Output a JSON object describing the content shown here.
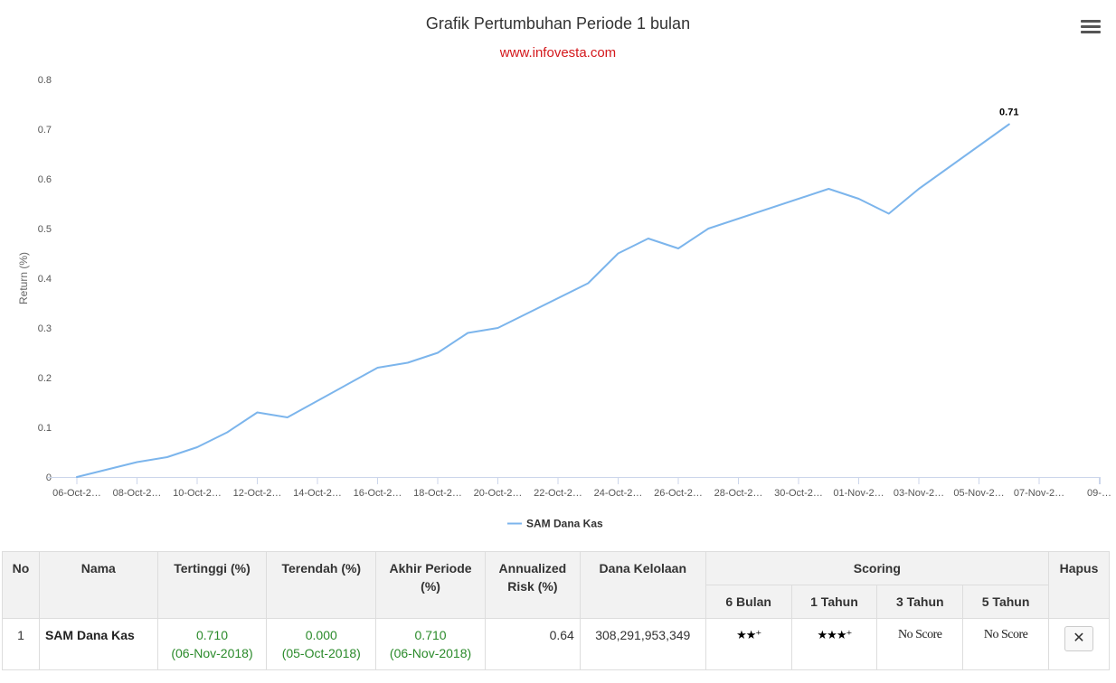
{
  "chart_data": {
    "type": "line",
    "title": "Grafik Pertumbuhan Periode 1 bulan",
    "subtitle": "www.infovesta.com",
    "ylabel": "Return (%)",
    "xlabel": "",
    "ylim": [
      0,
      0.8
    ],
    "yticks": [
      "0",
      "0.1",
      "0.2",
      "0.3",
      "0.4",
      "0.5",
      "0.6",
      "0.7",
      "0.8"
    ],
    "xtick_labels": [
      "06-Oct-2…",
      "08-Oct-2…",
      "10-Oct-2…",
      "12-Oct-2…",
      "14-Oct-2…",
      "16-Oct-2…",
      "18-Oct-2…",
      "20-Oct-2…",
      "22-Oct-2…",
      "24-Oct-2…",
      "26-Oct-2…",
      "28-Oct-2…",
      "30-Oct-2…",
      "01-Nov-2…",
      "03-Nov-2…",
      "05-Nov-2…",
      "07-Nov-2…",
      "09-…"
    ],
    "grid": false,
    "legend_position": "bottom",
    "series": [
      {
        "name": "SAM Dana Kas",
        "color": "#7cb5ec",
        "x": [
          "2018-10-06",
          "2018-10-08",
          "2018-10-09",
          "2018-10-10",
          "2018-10-11",
          "2018-10-12",
          "2018-10-13",
          "2018-10-16",
          "2018-10-17",
          "2018-10-18",
          "2018-10-19",
          "2018-10-20",
          "2018-10-23",
          "2018-10-24",
          "2018-10-25",
          "2018-10-26",
          "2018-10-27",
          "2018-10-31",
          "2018-11-01",
          "2018-11-02",
          "2018-11-03",
          "2018-11-06"
        ],
        "values": [
          0.0,
          0.03,
          0.04,
          0.06,
          0.09,
          0.13,
          0.12,
          0.22,
          0.23,
          0.25,
          0.29,
          0.3,
          0.39,
          0.45,
          0.48,
          0.46,
          0.5,
          0.58,
          0.56,
          0.53,
          0.58,
          0.71
        ],
        "end_label": "0.71"
      }
    ]
  },
  "table": {
    "headers": {
      "no": "No",
      "nama": "Nama",
      "tertinggi": "Tertinggi (%)",
      "terendah": "Terendah (%)",
      "akhir": "Akhir Periode (%)",
      "risk": "Annualized Risk (%)",
      "dana": "Dana Kelolaan",
      "scoring": "Scoring",
      "hapus": "Hapus",
      "s6": "6 Bulan",
      "s1": "1 Tahun",
      "s3": "3 Tahun",
      "s5": "5 Tahun"
    },
    "rows": [
      {
        "no": "1",
        "nama": "SAM Dana Kas",
        "tertinggi": "0.710",
        "tertinggi_date": "(06-Nov-2018)",
        "terendah": "0.000",
        "terendah_date": "(05-Oct-2018)",
        "akhir": "0.710",
        "akhir_date": "(06-Nov-2018)",
        "risk": "0.64",
        "dana": "308,291,953,349",
        "s6": "★★⁺",
        "s1": "★★★⁺",
        "s3": "No Score",
        "s5": "No Score",
        "hapus": "✕"
      }
    ]
  }
}
